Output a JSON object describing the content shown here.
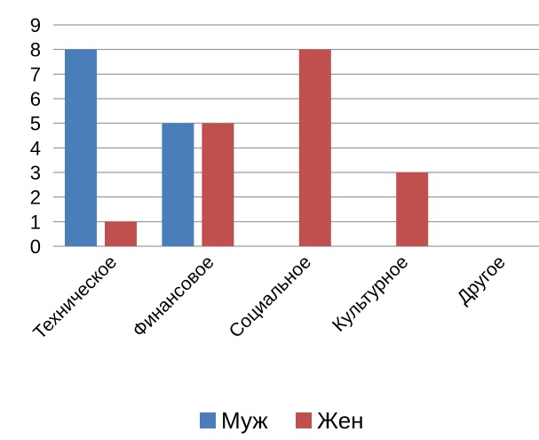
{
  "chart_data": {
    "type": "bar",
    "title": "",
    "xlabel": "",
    "ylabel": "",
    "categories": [
      "Техническое",
      "Финансовое",
      "Социальное",
      "Культурное",
      "Другое"
    ],
    "series": [
      {
        "name": "Муж",
        "color": "#4a7ebb",
        "values": [
          8,
          5,
          0,
          0,
          0
        ]
      },
      {
        "name": "Жен",
        "color": "#c0504d",
        "values": [
          1,
          5,
          8,
          3,
          0
        ]
      }
    ],
    "ylim": [
      0,
      9
    ],
    "yticks": [
      0,
      1,
      2,
      3,
      4,
      5,
      6,
      7,
      8,
      9
    ],
    "grid": true,
    "legend_position": "bottom"
  }
}
